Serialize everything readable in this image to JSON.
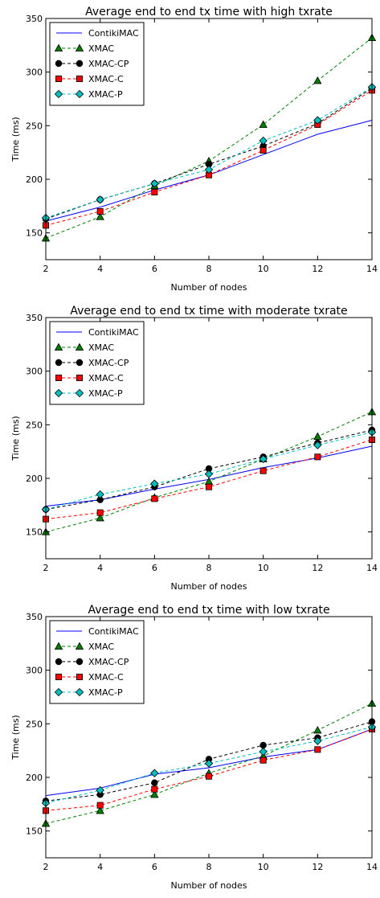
{
  "chart_data": [
    {
      "type": "line",
      "title": "Average end to end tx time with high txrate",
      "xlabel": "Number of nodes",
      "ylabel": "Time (ms)",
      "xlim": [
        2,
        14
      ],
      "ylim": [
        125,
        350
      ],
      "x": [
        2,
        4,
        6,
        8,
        10,
        12,
        14
      ],
      "xticks": [
        2,
        4,
        6,
        8,
        10,
        12,
        14
      ],
      "yticks": [
        150,
        200,
        250,
        300,
        350
      ],
      "grid": false,
      "legend_position": "top-left",
      "series": [
        {
          "name": "ContikiMAC",
          "color": "#0000ff",
          "style": "solid",
          "marker": "none",
          "values": [
            161,
            174,
            190,
            204,
            223,
            242,
            255
          ]
        },
        {
          "name": "XMAC",
          "color": "#008000",
          "style": "dashed",
          "marker": "triangle",
          "values": [
            145,
            165,
            194,
            217,
            251,
            292,
            332
          ]
        },
        {
          "name": "XMAC-CP",
          "color": "#000000",
          "style": "dashed",
          "marker": "circle",
          "values": [
            163,
            181,
            196,
            214,
            231,
            252,
            285
          ]
        },
        {
          "name": "XMAC-C",
          "color": "#ff0000",
          "style": "dashed",
          "marker": "square",
          "values": [
            157,
            170,
            188,
            204,
            227,
            251,
            283
          ]
        },
        {
          "name": "XMAC-P",
          "color": "#00bfbf",
          "style": "dashed",
          "marker": "diamond",
          "values": [
            164,
            181,
            196,
            209,
            236,
            255,
            286
          ]
        }
      ]
    },
    {
      "type": "line",
      "title": "Average end to end tx time with moderate txrate",
      "xlabel": "Number of nodes",
      "ylabel": "Time (ms)",
      "xlim": [
        2,
        14
      ],
      "ylim": [
        125,
        350
      ],
      "x": [
        2,
        4,
        6,
        8,
        10,
        12,
        14
      ],
      "xticks": [
        2,
        4,
        6,
        8,
        10,
        12,
        14
      ],
      "yticks": [
        150,
        200,
        250,
        300,
        350
      ],
      "grid": false,
      "legend_position": "top-left",
      "series": [
        {
          "name": "ContikiMAC",
          "color": "#0000ff",
          "style": "solid",
          "marker": "none",
          "values": [
            174,
            180,
            190,
            199,
            210,
            219,
            230
          ]
        },
        {
          "name": "XMAC",
          "color": "#008000",
          "style": "dashed",
          "marker": "triangle",
          "values": [
            150,
            163,
            182,
            197,
            218,
            239,
            262
          ]
        },
        {
          "name": "XMAC-CP",
          "color": "#000000",
          "style": "dashed",
          "marker": "circle",
          "values": [
            171,
            180,
            192,
            209,
            220,
            233,
            245
          ]
        },
        {
          "name": "XMAC-C",
          "color": "#ff0000",
          "style": "dashed",
          "marker": "square",
          "values": [
            162,
            168,
            181,
            192,
            207,
            220,
            236
          ]
        },
        {
          "name": "XMAC-P",
          "color": "#00bfbf",
          "style": "dashed",
          "marker": "diamond",
          "values": [
            171,
            185,
            195,
            204,
            218,
            231,
            243
          ]
        }
      ]
    },
    {
      "type": "line",
      "title": "Average end to end tx time with low txrate",
      "xlabel": "Number of nodes",
      "ylabel": "Time (ms)",
      "xlim": [
        2,
        14
      ],
      "ylim": [
        125,
        350
      ],
      "x": [
        2,
        4,
        6,
        8,
        10,
        12,
        14
      ],
      "xticks": [
        2,
        4,
        6,
        8,
        10,
        12,
        14
      ],
      "yticks": [
        150,
        200,
        250,
        300,
        350
      ],
      "grid": false,
      "legend_position": "top-left",
      "series": [
        {
          "name": "ContikiMAC",
          "color": "#0000ff",
          "style": "solid",
          "marker": "none",
          "values": [
            183,
            190,
            203,
            209,
            219,
            226,
            245
          ]
        },
        {
          "name": "XMAC",
          "color": "#008000",
          "style": "dashed",
          "marker": "triangle",
          "values": [
            157,
            169,
            184,
            204,
            220,
            244,
            269
          ]
        },
        {
          "name": "XMAC-CP",
          "color": "#000000",
          "style": "dashed",
          "marker": "circle",
          "values": [
            178,
            184,
            195,
            217,
            230,
            237,
            252
          ]
        },
        {
          "name": "XMAC-C",
          "color": "#ff0000",
          "style": "dashed",
          "marker": "square",
          "values": [
            169,
            174,
            189,
            201,
            216,
            226,
            245
          ]
        },
        {
          "name": "XMAC-P",
          "color": "#00bfbf",
          "style": "dashed",
          "marker": "diamond",
          "values": [
            176,
            188,
            204,
            213,
            224,
            234,
            247
          ]
        }
      ]
    }
  ]
}
